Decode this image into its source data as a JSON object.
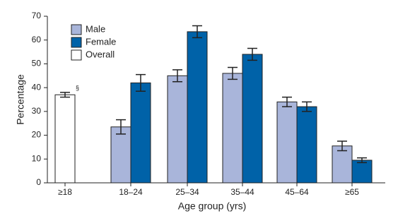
{
  "chart_data": {
    "type": "bar",
    "categories": [
      "≥18",
      "18–24",
      "25–34",
      "35–44",
      "45–64",
      "≥65"
    ],
    "series": [
      {
        "name": "Male",
        "color": "#a9b5da",
        "values": [
          null,
          23.5,
          45,
          46,
          34,
          15.5
        ],
        "errors": [
          null,
          3,
          2.5,
          2.5,
          2,
          2
        ]
      },
      {
        "name": "Female",
        "color": "#0062a8",
        "values": [
          null,
          42,
          63.5,
          54,
          32,
          9.5
        ],
        "errors": [
          null,
          3.5,
          2.5,
          2.5,
          2,
          1
        ]
      },
      {
        "name": "Overall",
        "color": "#ffffff",
        "values": [
          37,
          null,
          null,
          null,
          null,
          null
        ],
        "errors": [
          1,
          null,
          null,
          null,
          null,
          null
        ]
      }
    ],
    "annotation": "§",
    "x_label": "Age group (yrs)",
    "y_label": "Percentage",
    "ylim": [
      0,
      70
    ],
    "yticks": [
      0,
      10,
      20,
      30,
      40,
      50,
      60,
      70
    ],
    "legend": "top-left"
  }
}
